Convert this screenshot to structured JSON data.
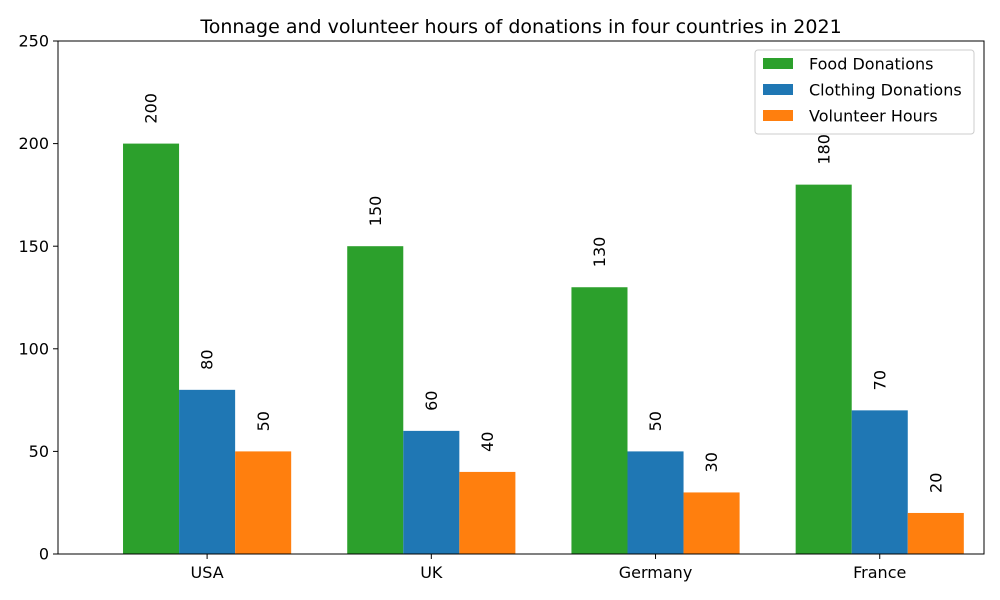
{
  "chart_data": {
    "type": "bar",
    "title": "Tonnage and volunteer hours of donations in four countries in 2021",
    "xlabel": "",
    "ylabel": "",
    "categories": [
      "USA",
      "UK",
      "Germany",
      "France"
    ],
    "series": [
      {
        "name": "Food Donations",
        "color": "#2ca02c",
        "values": [
          200,
          150,
          130,
          180
        ]
      },
      {
        "name": "Clothing Donations",
        "color": "#1f77b4",
        "values": [
          80,
          60,
          50,
          70
        ]
      },
      {
        "name": "Volunteer Hours",
        "color": "#ff7f0e",
        "values": [
          50,
          40,
          30,
          20
        ]
      }
    ],
    "ylim": [
      0,
      250
    ],
    "yticks": [
      0,
      50,
      100,
      150,
      200,
      250
    ],
    "grid": false,
    "legend_position": "top-right",
    "data_labels": "rotated-vertical"
  }
}
